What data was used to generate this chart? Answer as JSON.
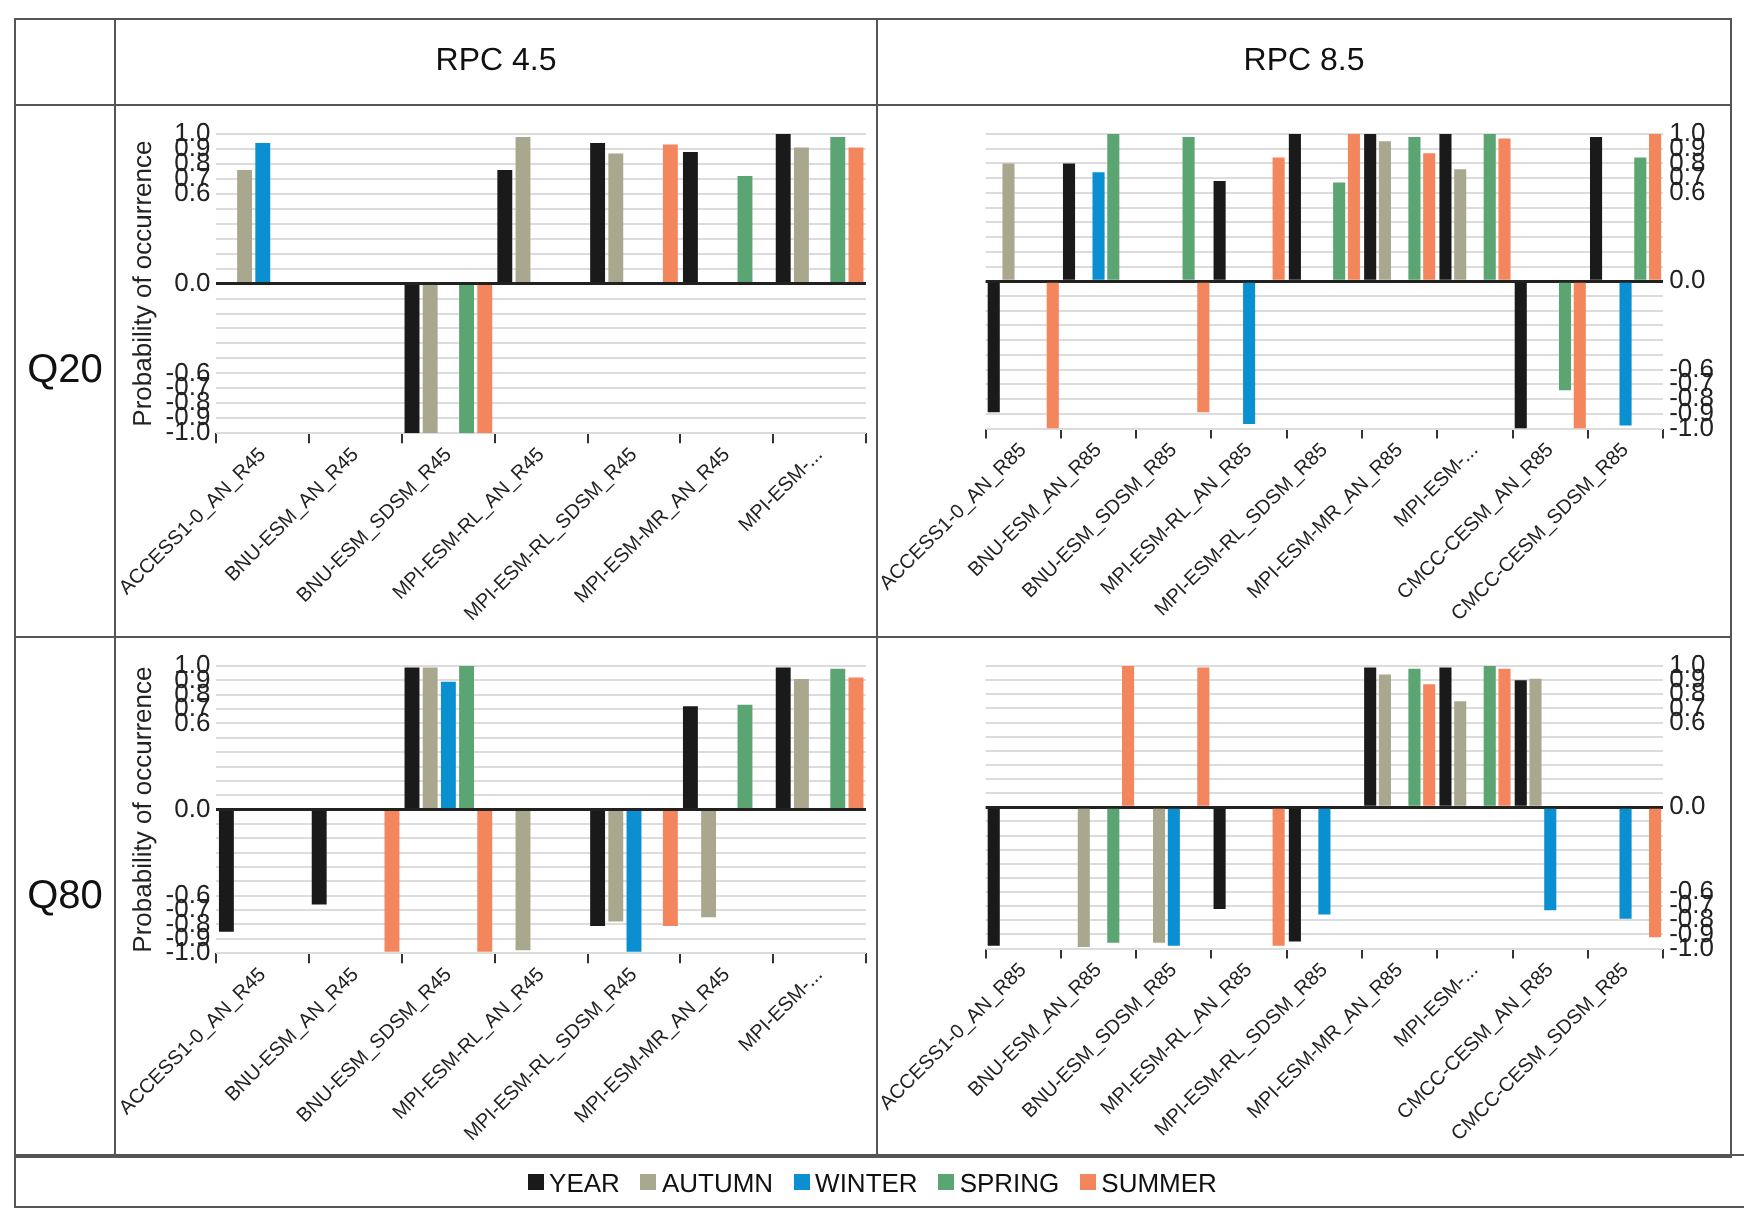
{
  "chart_data": [
    {
      "type": "bar",
      "title": "RPC 4.5",
      "annotations": [
        "Q20"
      ],
      "ylabel": "Probability of occurrence",
      "grid": "y",
      "legend": "bottom",
      "categories": [
        "ACCESS1-0_AN_R45",
        "BNU-ESM_AN_R45",
        "BNU-ESM_SDSM_R45",
        "MPI-ESM-RL_AN_R45",
        "MPI-ESM-RL_SDSM_R45",
        "MPI-ESM-MR_AN_R45",
        "MPI-ESM-..."
      ],
      "ylim": [
        -1,
        1
      ],
      "yticks": [
        {
          "value": -1,
          "label": "-1.0"
        },
        -0.9,
        -0.8,
        -0.7,
        -0.6,
        {
          "value": -0.5,
          "label": null
        },
        {
          "value": -0.4,
          "label": null
        },
        {
          "value": -0.3,
          "label": null
        },
        {
          "value": -0.2,
          "label": null
        },
        {
          "value": -0.1,
          "label": null
        },
        {
          "value": 0,
          "label": "0.0"
        },
        {
          "value": 0.1,
          "label": null
        },
        {
          "value": 0.2,
          "label": null
        },
        {
          "value": 0.3,
          "label": null
        },
        {
          "value": 0.4,
          "label": null
        },
        {
          "value": 0.5,
          "label": null
        },
        0.6,
        0.7,
        0.8,
        0.9,
        {
          "value": 1,
          "label": "1.0"
        }
      ],
      "series": [
        {
          "name": "YEAR",
          "color": "#1a1a1a",
          "values": [
            null,
            null,
            -1.0,
            0.76,
            0.94,
            0.88,
            1.0
          ]
        },
        {
          "name": "AUTUMN",
          "color": "#a9a88f",
          "values": [
            0.76,
            null,
            -1.0,
            0.98,
            0.87,
            null,
            0.91
          ]
        },
        {
          "name": "WINTER",
          "color": "#0a8fd0",
          "values": [
            0.94,
            null,
            null,
            null,
            null,
            null,
            null
          ]
        },
        {
          "name": "SPRING",
          "color": "#5aa572",
          "values": [
            null,
            null,
            -1.0,
            null,
            null,
            0.72,
            0.98
          ]
        },
        {
          "name": "SUMMER",
          "color": "#f4865e",
          "values": [
            null,
            null,
            -1.0,
            null,
            0.93,
            null,
            0.91
          ]
        }
      ]
    },
    {
      "type": "bar",
      "title": "RPC 8.5",
      "grid": "y",
      "categories": [
        "ACCESS1-0_AN_R85",
        "BNU-ESM_AN_R85",
        "BNU-ESM_SDSM_R85",
        "MPI-ESM-RL_AN_R85",
        "MPI-ESM-RL_SDSM_R85",
        "MPI-ESM-MR_AN_R85",
        "MPI-ESM-...",
        "CMCC-CESM_AN_R85",
        "CMCC-CESM_SDSM_R85"
      ],
      "y2lim": [
        -1,
        1
      ],
      "y2ticks": [
        {
          "value": -1,
          "label": "-1.0"
        },
        -0.9,
        -0.8,
        -0.7,
        -0.6,
        {
          "value": -0.5,
          "label": null
        },
        {
          "value": -0.4,
          "label": null
        },
        {
          "value": -0.3,
          "label": null
        },
        {
          "value": -0.2,
          "label": null
        },
        {
          "value": -0.1,
          "label": null
        },
        {
          "value": 0,
          "label": "0.0"
        },
        {
          "value": 0.1,
          "label": null
        },
        {
          "value": 0.2,
          "label": null
        },
        {
          "value": 0.3,
          "label": null
        },
        {
          "value": 0.4,
          "label": null
        },
        {
          "value": 0.5,
          "label": null
        },
        0.6,
        0.7,
        0.8,
        0.9,
        {
          "value": 1,
          "label": "1.0"
        }
      ],
      "series": [
        {
          "color": "#1a1a1a",
          "axis": "y2",
          "values": [
            -0.89,
            0.8,
            null,
            0.68,
            1.0,
            1.0,
            1.0,
            -1.0,
            0.98
          ]
        },
        {
          "color": "#a9a88f",
          "axis": "y2",
          "values": [
            0.8,
            null,
            null,
            null,
            null,
            0.95,
            0.76,
            null,
            null
          ]
        },
        {
          "color": "#0a8fd0",
          "axis": "y2",
          "values": [
            null,
            0.74,
            null,
            -0.97,
            null,
            null,
            null,
            null,
            -0.98
          ]
        },
        {
          "color": "#5aa572",
          "axis": "y2",
          "values": [
            null,
            1.0,
            0.98,
            null,
            0.67,
            0.98,
            1.0,
            -0.74,
            0.84
          ]
        },
        {
          "color": "#f4865e",
          "axis": "y2",
          "values": [
            -1.0,
            null,
            -0.89,
            0.84,
            1.0,
            0.87,
            0.97,
            -1.0,
            1.0
          ]
        }
      ]
    },
    {
      "type": "bar",
      "annotations": [
        "Q80"
      ],
      "ylabel": "Probability of occurrence",
      "grid": "y",
      "categories": [
        "ACCESS1-0_AN_R45",
        "BNU-ESM_AN_R45",
        "BNU-ESM_SDSM_R45",
        "MPI-ESM-RL_AN_R45",
        "MPI-ESM-RL_SDSM_R45",
        "MPI-ESM-MR_AN_R45",
        "MPI-ESM-..."
      ],
      "ylim": [
        -1,
        1
      ],
      "yticks": [
        {
          "value": -1,
          "label": "-1.0"
        },
        -0.9,
        -0.8,
        -0.7,
        -0.6,
        {
          "value": -0.5,
          "label": null
        },
        {
          "value": -0.4,
          "label": null
        },
        {
          "value": -0.3,
          "label": null
        },
        {
          "value": -0.2,
          "label": null
        },
        {
          "value": -0.1,
          "label": null
        },
        {
          "value": 0,
          "label": "0.0"
        },
        {
          "value": 0.1,
          "label": null
        },
        {
          "value": 0.2,
          "label": null
        },
        {
          "value": 0.3,
          "label": null
        },
        {
          "value": 0.4,
          "label": null
        },
        {
          "value": 0.5,
          "label": null
        },
        0.6,
        0.7,
        0.8,
        0.9,
        {
          "value": 1,
          "label": "1.0"
        }
      ],
      "series": [
        {
          "color": "#1a1a1a",
          "values": [
            -0.85,
            -0.66,
            0.99,
            null,
            -0.81,
            0.72,
            0.99
          ]
        },
        {
          "color": "#a9a88f",
          "values": [
            null,
            null,
            0.99,
            -0.98,
            -0.78,
            -0.75,
            0.91
          ]
        },
        {
          "color": "#0a8fd0",
          "values": [
            null,
            null,
            0.89,
            null,
            -0.99,
            null,
            null
          ]
        },
        {
          "color": "#5aa572",
          "values": [
            null,
            null,
            1.0,
            null,
            null,
            0.73,
            0.98
          ]
        },
        {
          "color": "#f4865e",
          "values": [
            null,
            -0.99,
            -0.99,
            null,
            -0.81,
            null,
            0.92
          ]
        }
      ]
    },
    {
      "type": "bar",
      "grid": "y",
      "categories": [
        "ACCESS1-0_AN_R85",
        "BNU-ESM_AN_R85",
        "BNU-ESM_SDSM_R85",
        "MPI-ESM-RL_AN_R85",
        "MPI-ESM-RL_SDSM_R85",
        "MPI-ESM-MR_AN_R85",
        "MPI-ESM-...",
        "CMCC-CESM_AN_R85",
        "CMCC-CESM_SDSM_R85"
      ],
      "y2lim": [
        -1,
        1
      ],
      "y2ticks": [
        {
          "value": -1,
          "label": "-1.0"
        },
        -0.9,
        -0.8,
        -0.7,
        -0.6,
        {
          "value": -0.5,
          "label": null
        },
        {
          "value": -0.4,
          "label": null
        },
        {
          "value": -0.3,
          "label": null
        },
        {
          "value": -0.2,
          "label": null
        },
        {
          "value": -0.1,
          "label": null
        },
        {
          "value": 0,
          "label": "0.0"
        },
        {
          "value": 0.1,
          "label": null
        },
        {
          "value": 0.2,
          "label": null
        },
        {
          "value": 0.3,
          "label": null
        },
        {
          "value": 0.4,
          "label": null
        },
        {
          "value": 0.5,
          "label": null
        },
        0.6,
        0.7,
        0.8,
        0.9,
        {
          "value": 1,
          "label": "1.0"
        }
      ],
      "series": [
        {
          "color": "#1a1a1a",
          "axis": "y2",
          "values": [
            -0.98,
            null,
            null,
            -0.72,
            -0.95,
            0.99,
            0.99,
            0.9,
            null
          ]
        },
        {
          "color": "#a9a88f",
          "axis": "y2",
          "values": [
            null,
            -0.99,
            -0.96,
            null,
            null,
            0.94,
            0.75,
            0.91,
            null
          ]
        },
        {
          "color": "#0a8fd0",
          "axis": "y2",
          "values": [
            null,
            null,
            -0.98,
            null,
            -0.76,
            null,
            null,
            -0.73,
            -0.79
          ]
        },
        {
          "color": "#5aa572",
          "axis": "y2",
          "values": [
            null,
            -0.96,
            null,
            null,
            null,
            0.98,
            1.0,
            null,
            null
          ]
        },
        {
          "color": "#f4865e",
          "axis": "y2",
          "values": [
            null,
            1.0,
            0.99,
            -0.98,
            null,
            0.87,
            0.98,
            null,
            -0.92
          ]
        }
      ]
    }
  ]
}
